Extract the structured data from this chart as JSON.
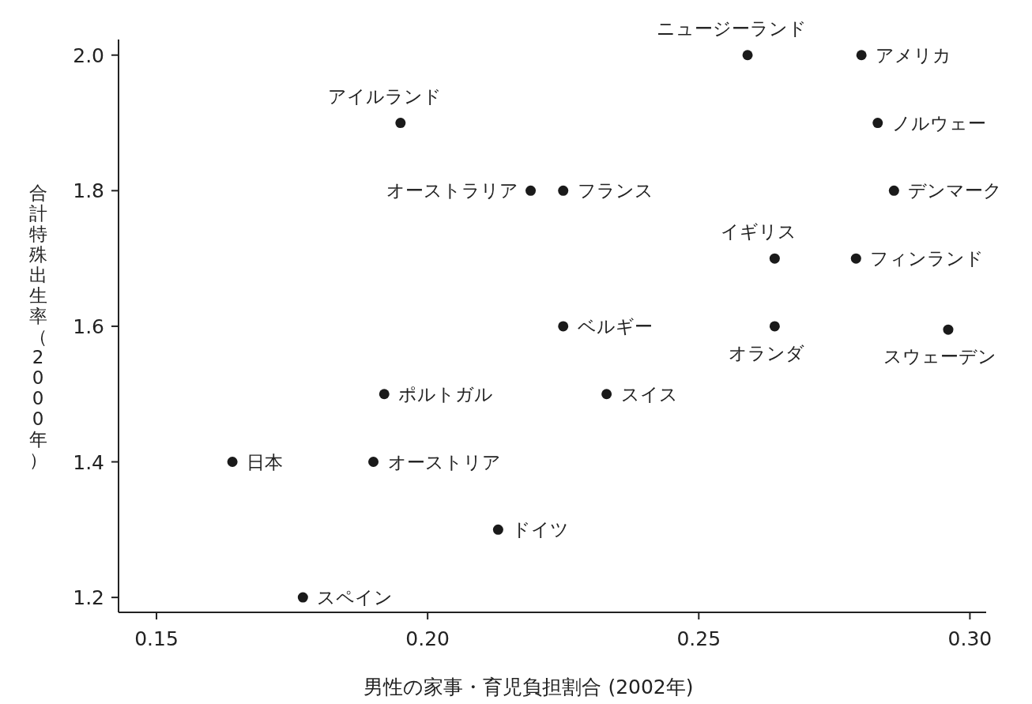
{
  "chart_data": {
    "type": "scatter",
    "xlabel": "男性の家事・育児負担割合 (2002年)",
    "ylabel": "合計特殊出生率（2000年）",
    "x": [
      0.259,
      0.28,
      0.195,
      0.283,
      0.219,
      0.225,
      0.286,
      0.264,
      0.279,
      0.225,
      0.264,
      0.296,
      0.192,
      0.233,
      0.164,
      0.19,
      0.213,
      0.177
    ],
    "series": [
      {
        "color": "#1a1a1a",
        "values": [
          2.0,
          2.0,
          1.9,
          1.9,
          1.8,
          1.8,
          1.8,
          1.7,
          1.7,
          1.6,
          1.6,
          1.595,
          1.5,
          1.5,
          1.4,
          1.4,
          1.3,
          1.2
        ]
      }
    ],
    "annotations": [
      {
        "text": "ニュージーランド",
        "x": 0.259,
        "y": 2.0
      },
      {
        "text": "アメリカ",
        "x": 0.28,
        "y": 2.0
      },
      {
        "text": "アイルランド",
        "x": 0.195,
        "y": 1.9
      },
      {
        "text": "ノルウェー",
        "x": 0.283,
        "y": 1.9
      },
      {
        "text": "オーストラリア",
        "x": 0.219,
        "y": 1.8
      },
      {
        "text": "フランス",
        "x": 0.225,
        "y": 1.8
      },
      {
        "text": "デンマーク",
        "x": 0.286,
        "y": 1.8
      },
      {
        "text": "イギリス",
        "x": 0.264,
        "y": 1.7
      },
      {
        "text": "フィンランド",
        "x": 0.279,
        "y": 1.7
      },
      {
        "text": "ベルギー",
        "x": 0.225,
        "y": 1.6
      },
      {
        "text": "オランダ",
        "x": 0.264,
        "y": 1.6
      },
      {
        "text": "スウェーデン",
        "x": 0.296,
        "y": 1.595
      },
      {
        "text": "ポルトガル",
        "x": 0.192,
        "y": 1.5
      },
      {
        "text": "スイス",
        "x": 0.233,
        "y": 1.5
      },
      {
        "text": "日本",
        "x": 0.164,
        "y": 1.4
      },
      {
        "text": "オーストリア",
        "x": 0.19,
        "y": 1.4
      },
      {
        "text": "ドイツ",
        "x": 0.213,
        "y": 1.3
      },
      {
        "text": "スペイン",
        "x": 0.177,
        "y": 1.2
      }
    ],
    "xlim": [
      0.143,
      0.303
    ],
    "ylim": [
      1.178,
      2.023
    ],
    "xticks": [
      {
        "value": 0.15,
        "label": "0.15"
      },
      {
        "value": 0.2,
        "label": "0.20"
      },
      {
        "value": 0.25,
        "label": "0.25"
      },
      {
        "value": 0.3,
        "label": "0.30"
      }
    ],
    "yticks": [
      {
        "value": 1.2,
        "label": "1.2"
      },
      {
        "value": 1.4,
        "label": "1.4"
      },
      {
        "value": 1.6,
        "label": "1.6"
      },
      {
        "value": 1.8,
        "label": "1.8"
      },
      {
        "value": 2.0,
        "label": "2.0"
      }
    ],
    "grid": false,
    "marker": "circle"
  }
}
